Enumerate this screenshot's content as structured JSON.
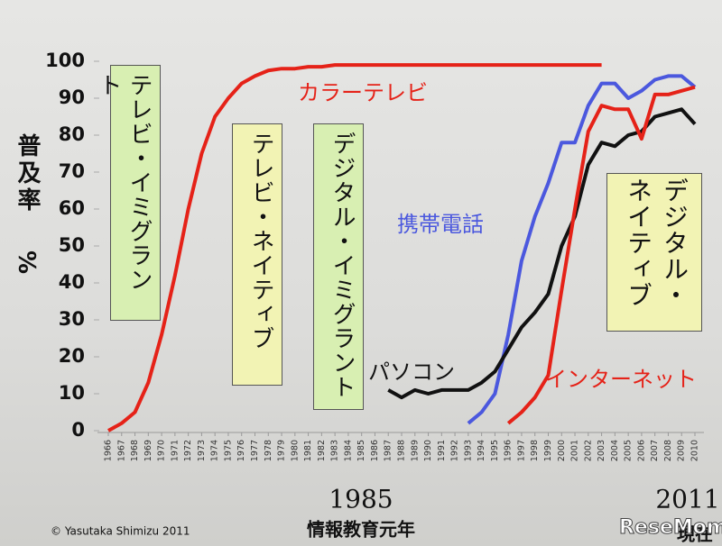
{
  "chart_data": {
    "type": "line",
    "ylabel": [
      "普及率",
      "%"
    ],
    "x": [
      1966,
      1967,
      1968,
      1969,
      1970,
      1971,
      1972,
      1973,
      1974,
      1975,
      1976,
      1977,
      1978,
      1979,
      1980,
      1981,
      1982,
      1983,
      1984,
      1985,
      1986,
      1987,
      1988,
      1989,
      1990,
      1991,
      1992,
      1993,
      1994,
      1995,
      1996,
      1997,
      1998,
      1999,
      2000,
      2001,
      2002,
      2003,
      2004,
      2005,
      2006,
      2007,
      2008,
      2009,
      2010
    ],
    "xlim": [
      1966,
      2010
    ],
    "ylim": [
      0,
      100
    ],
    "yticks": [
      0,
      10,
      20,
      30,
      40,
      50,
      60,
      70,
      80,
      90,
      100
    ],
    "grid": false,
    "series": [
      {
        "name": "カラーテレビ",
        "color": "#e52218",
        "values": [
          0,
          2,
          5,
          13,
          26,
          42,
          60,
          75,
          85,
          90,
          94,
          96,
          97.5,
          98,
          98,
          98.5,
          98.5,
          99,
          99,
          99,
          99,
          99,
          99,
          99,
          99,
          99,
          99,
          99,
          99,
          99,
          99,
          99,
          99,
          99,
          99,
          99,
          99,
          99,
          null,
          null,
          null,
          null,
          null,
          null,
          null
        ]
      },
      {
        "name": "携帯電話",
        "color": "#4b58de",
        "values": [
          null,
          null,
          null,
          null,
          null,
          null,
          null,
          null,
          null,
          null,
          null,
          null,
          null,
          null,
          null,
          null,
          null,
          null,
          null,
          null,
          null,
          null,
          null,
          null,
          null,
          null,
          null,
          2,
          5,
          10,
          26,
          46,
          58,
          67,
          78,
          78,
          88,
          94,
          94,
          90,
          92,
          95,
          96,
          96,
          93
        ]
      },
      {
        "name": "パソコン",
        "color": "#111111",
        "values": [
          null,
          null,
          null,
          null,
          null,
          null,
          null,
          null,
          null,
          null,
          null,
          null,
          null,
          null,
          null,
          null,
          null,
          null,
          null,
          null,
          null,
          11,
          9,
          11,
          10,
          11,
          11,
          11,
          13,
          16,
          22,
          28,
          32,
          37,
          50,
          58,
          72,
          78,
          77,
          80,
          81,
          85,
          86,
          87,
          83
        ]
      },
      {
        "name": "インターネット",
        "color": "#e52218",
        "values": [
          null,
          null,
          null,
          null,
          null,
          null,
          null,
          null,
          null,
          null,
          null,
          null,
          null,
          null,
          null,
          null,
          null,
          null,
          null,
          null,
          null,
          null,
          null,
          null,
          null,
          null,
          null,
          null,
          null,
          null,
          2,
          5,
          9,
          15,
          38,
          60,
          81,
          88,
          87,
          87,
          79,
          91,
          91,
          92,
          93
        ]
      }
    ],
    "boxes": [
      "テレビ・イミグラント",
      "テレビ・ネイティブ",
      "デジタル・イミグラント",
      "デジタル・ネイティブ"
    ],
    "notes": [
      "1985",
      "2011",
      "情報教育元年",
      "現在",
      "© Yasutaka Shimizu 2011"
    ],
    "watermark": "ReseMom"
  }
}
